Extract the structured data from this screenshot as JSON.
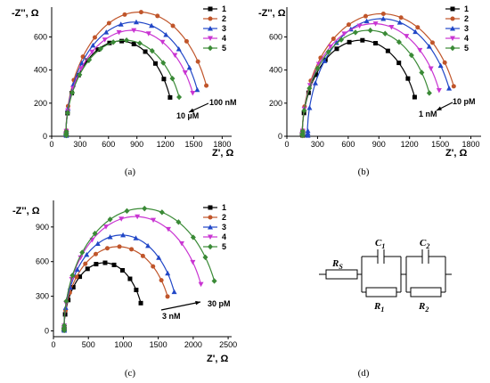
{
  "colors": [
    "#000000",
    "#c0552a",
    "#2147c7",
    "#c935d2",
    "#3a8a36"
  ],
  "chart_data": [
    {
      "type": "scatter",
      "panel_label": "(a)",
      "xlabel": "Z', Ω",
      "ylabel": "-Z'', Ω",
      "xlim": [
        0,
        1900
      ],
      "ylim": [
        0,
        780
      ],
      "xticks": [
        0,
        300,
        600,
        900,
        1200,
        1500,
        1800
      ],
      "yticks": [
        0,
        200,
        400,
        600
      ],
      "legend_position": "top-right",
      "annotations": [
        {
          "text": "100 nM"
        },
        {
          "text": "10 µM"
        }
      ],
      "series": [
        {
          "name": "1",
          "marker": "square",
          "r0": 150,
          "diameter": 1150,
          "peak": 575
        },
        {
          "name": "2",
          "marker": "circle",
          "r0": 150,
          "diameter": 1550,
          "peak": 750
        },
        {
          "name": "3",
          "marker": "triangle-up",
          "r0": 150,
          "diameter": 1450,
          "peak": 690
        },
        {
          "name": "4",
          "marker": "triangle-down",
          "r0": 150,
          "diameter": 1400,
          "peak": 640
        },
        {
          "name": "5",
          "marker": "diamond",
          "r0": 150,
          "diameter": 1250,
          "peak": 580
        }
      ]
    },
    {
      "type": "scatter",
      "panel_label": "(b)",
      "xlabel": "Z', Ω",
      "ylabel": "-Z'', Ω",
      "xlim": [
        0,
        1900
      ],
      "ylim": [
        0,
        780
      ],
      "xticks": [
        0,
        300,
        600,
        900,
        1200,
        1500,
        1800
      ],
      "yticks": [
        0,
        200,
        400,
        600
      ],
      "legend_position": "top-right",
      "annotations": [
        {
          "text": "10 pM"
        },
        {
          "text": "1 nM"
        }
      ],
      "series": [
        {
          "name": "1",
          "marker": "square",
          "r0": 150,
          "diameter": 1150,
          "peak": 580
        },
        {
          "name": "2",
          "marker": "circle",
          "r0": 150,
          "diameter": 1550,
          "peak": 740
        },
        {
          "name": "3",
          "marker": "triangle-up",
          "r0": 200,
          "diameter": 1450,
          "peak": 710
        },
        {
          "name": "4",
          "marker": "triangle-down",
          "r0": 150,
          "diameter": 1400,
          "peak": 680
        },
        {
          "name": "5",
          "marker": "diamond",
          "r0": 150,
          "diameter": 1300,
          "peak": 640
        }
      ]
    },
    {
      "type": "scatter",
      "panel_label": "(c)",
      "xlabel": "Z', Ω",
      "ylabel": "-Z'', Ω",
      "xlim": [
        0,
        2550
      ],
      "ylim": [
        -50,
        1130
      ],
      "xticks": [
        0,
        500,
        1000,
        1500,
        2000,
        2500
      ],
      "yticks": [
        0,
        300,
        600,
        900
      ],
      "legend_position": "top-right",
      "annotations": [
        {
          "text": "30 pM"
        },
        {
          "text": "3 nM"
        }
      ],
      "series": [
        {
          "name": "1",
          "marker": "square",
          "r0": 150,
          "diameter": 1150,
          "peak": 590
        },
        {
          "name": "2",
          "marker": "circle",
          "r0": 150,
          "diameter": 1550,
          "peak": 730
        },
        {
          "name": "3",
          "marker": "triangle-up",
          "r0": 150,
          "diameter": 1650,
          "peak": 830
        },
        {
          "name": "4",
          "marker": "triangle-down",
          "r0": 150,
          "diameter": 2050,
          "peak": 990
        },
        {
          "name": "5",
          "marker": "diamond",
          "r0": 150,
          "diameter": 2250,
          "peak": 1060
        }
      ]
    }
  ],
  "circuit": {
    "panel_label": "(d)",
    "labels": {
      "rs": "R",
      "rs_sub": "S",
      "c1": "C",
      "c1_sub": "1",
      "r1": "R",
      "r1_sub": "1",
      "c2": "C",
      "c2_sub": "2",
      "r2": "R",
      "r2_sub": "2"
    }
  }
}
